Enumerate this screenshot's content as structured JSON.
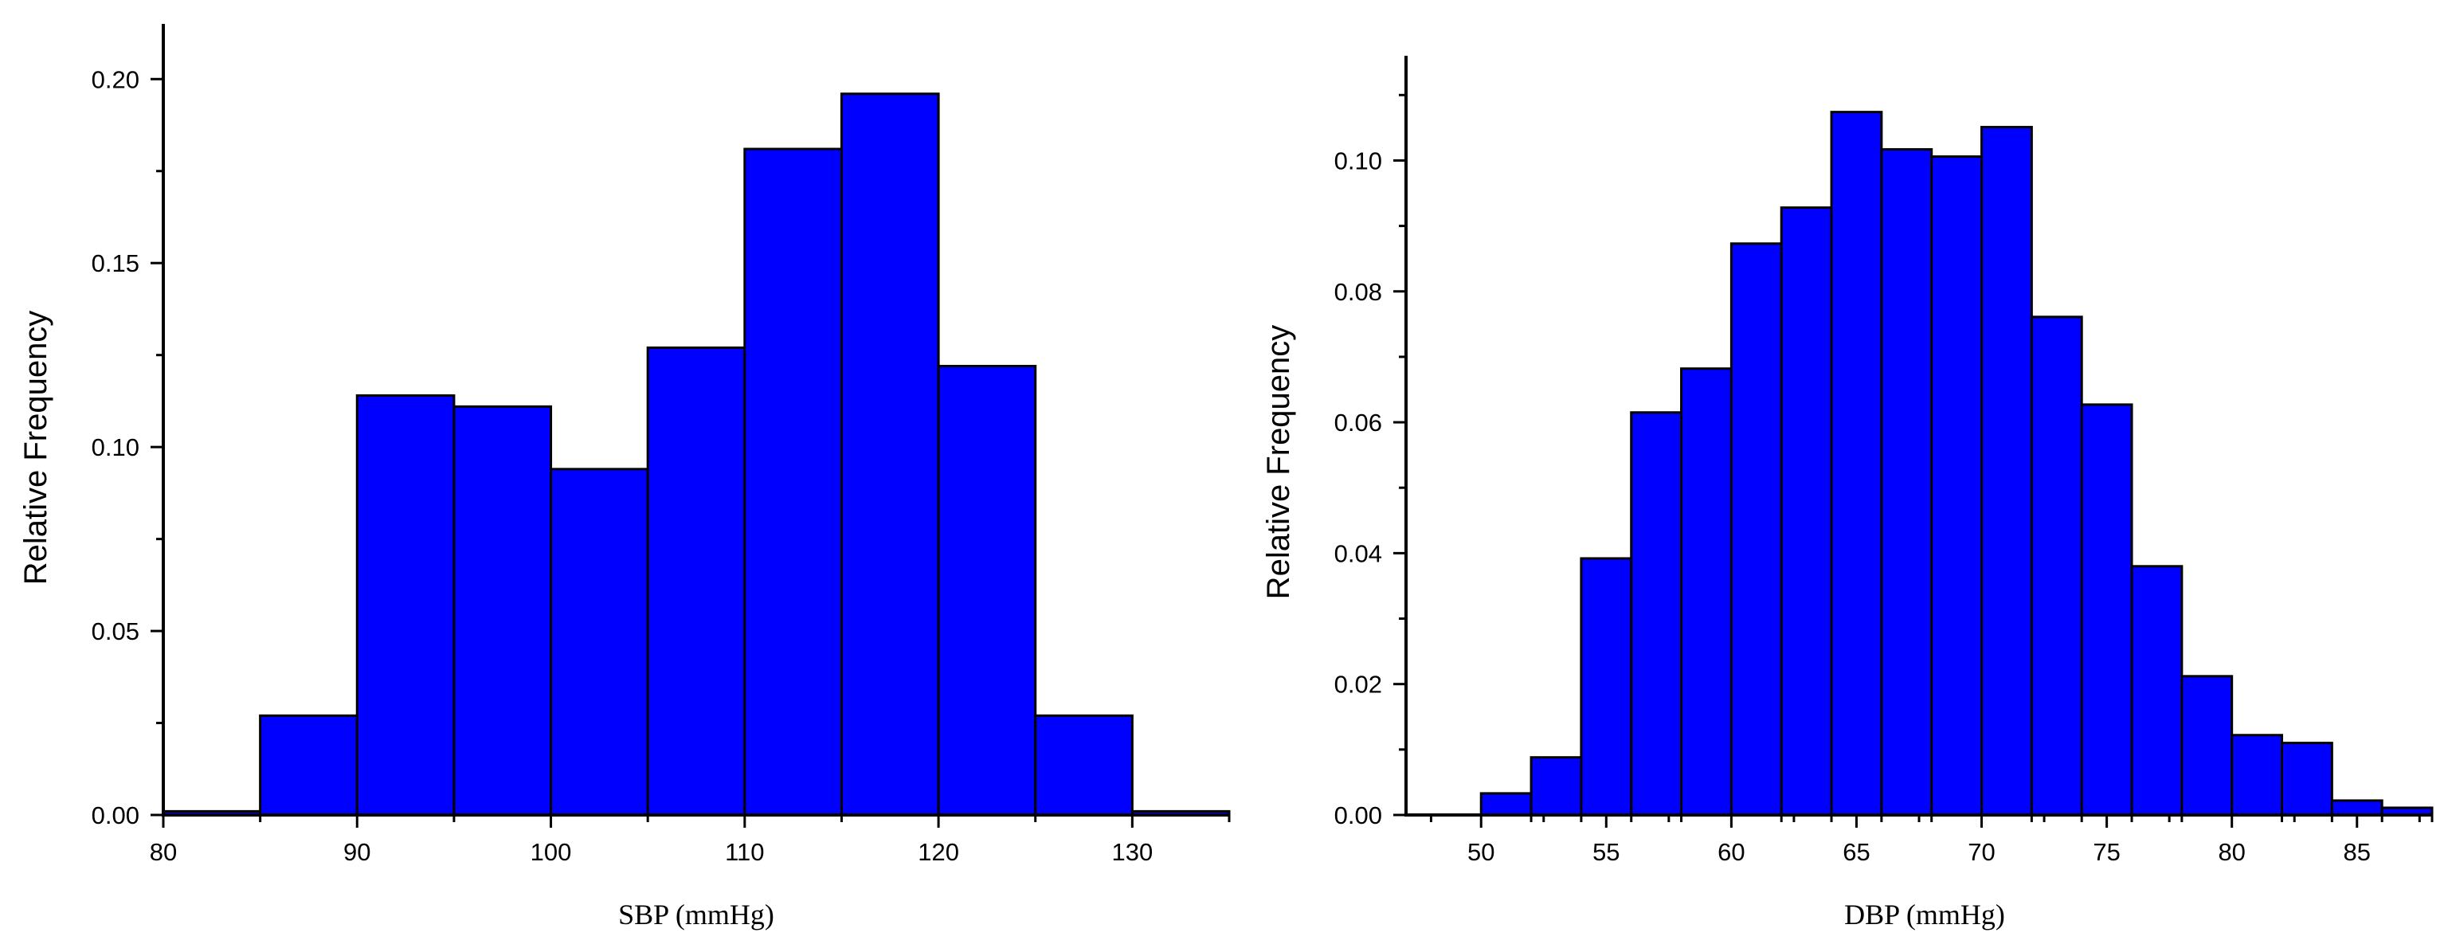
{
  "chart_data": [
    {
      "type": "bar",
      "xlabel": "SBP (mmHg)",
      "ylabel": "Relative Frequency",
      "xlim": [
        80,
        135
      ],
      "ylim": [
        0,
        0.215
      ],
      "bin_edges": [
        80,
        85,
        90,
        95,
        100,
        105,
        110,
        115,
        120,
        125,
        130,
        135
      ],
      "values": [
        0.001,
        0.027,
        0.114,
        0.111,
        0.094,
        0.127,
        0.181,
        0.196,
        0.122,
        0.027,
        0.001
      ],
      "x_ticks": [
        80,
        90,
        100,
        110,
        120,
        130
      ],
      "x_tick_labels": [
        "80",
        "90",
        "100",
        "110",
        "120",
        "130"
      ],
      "y_ticks": [
        0,
        0.05,
        0.1,
        0.15,
        0.2
      ],
      "y_tick_labels": [
        "0.00",
        "0.05",
        "0.10",
        "0.15",
        "0.20"
      ],
      "bar_color": "#0000FF"
    },
    {
      "type": "bar",
      "xlabel": "DBP (mmHg)",
      "ylabel": "Relative Frequency",
      "xlim": [
        47,
        88
      ],
      "ylim": [
        0,
        0.116
      ],
      "bin_edges": [
        48,
        50,
        52,
        54,
        56,
        58,
        60,
        62,
        64,
        66,
        68,
        70,
        72,
        74,
        76,
        78,
        80,
        82,
        84,
        86,
        88
      ],
      "values": [
        0.0,
        0.0033,
        0.0088,
        0.0392,
        0.0615,
        0.0682,
        0.0873,
        0.0928,
        0.1074,
        0.1017,
        0.1006,
        0.1051,
        0.0761,
        0.0627,
        0.038,
        0.0212,
        0.0122,
        0.011,
        0.0022,
        0.0011
      ],
      "x_ticks": [
        50,
        55,
        60,
        65,
        70,
        75,
        80,
        85
      ],
      "x_tick_labels": [
        "50",
        "55",
        "60",
        "65",
        "70",
        "75",
        "80",
        "85"
      ],
      "y_ticks": [
        0,
        0.02,
        0.04,
        0.06,
        0.08,
        0.1
      ],
      "y_tick_labels": [
        "0.00",
        "0.02",
        "0.04",
        "0.06",
        "0.08",
        "0.10"
      ],
      "bar_color": "#0000FF"
    }
  ]
}
